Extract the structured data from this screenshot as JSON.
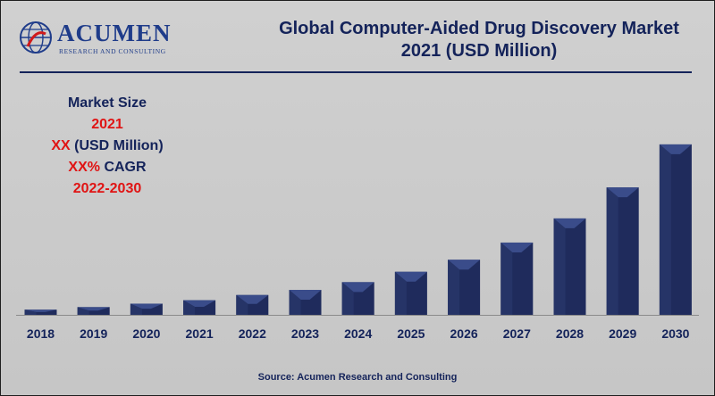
{
  "brand": {
    "name": "ACUMEN",
    "tagline": "RESEARCH AND CONSULTING"
  },
  "header": {
    "title_line1": "Global Computer-Aided Drug Discovery Market",
    "title_line2": "2021 (USD Million)"
  },
  "info_box": {
    "line1": "Market Size",
    "line2": "2021",
    "line3_prefix": "XX",
    "line3_suffix": " (USD Million)",
    "line4_prefix": "XX%",
    "line4_suffix": " CAGR",
    "line5": "2022-2030"
  },
  "source": "Source: Acumen Research and Consulting",
  "colors": {
    "bar_front": "#1f2b5c",
    "bar_top": "#3a4c8a",
    "accent_red": "#e01414",
    "navy_text": "#14235a"
  },
  "chart_data": {
    "type": "bar",
    "title": "Global Computer-Aided Drug Discovery Market 2021 (USD Million)",
    "xlabel": "",
    "ylabel": "",
    "categories": [
      "2018",
      "2019",
      "2020",
      "2021",
      "2022",
      "2023",
      "2024",
      "2025",
      "2026",
      "2027",
      "2028",
      "2029",
      "2030"
    ],
    "values": [
      6,
      9,
      13,
      17,
      23,
      29,
      38,
      50,
      64,
      84,
      112,
      148,
      198
    ],
    "ylim": [
      0,
      200
    ],
    "grid": false,
    "legend": "none"
  }
}
